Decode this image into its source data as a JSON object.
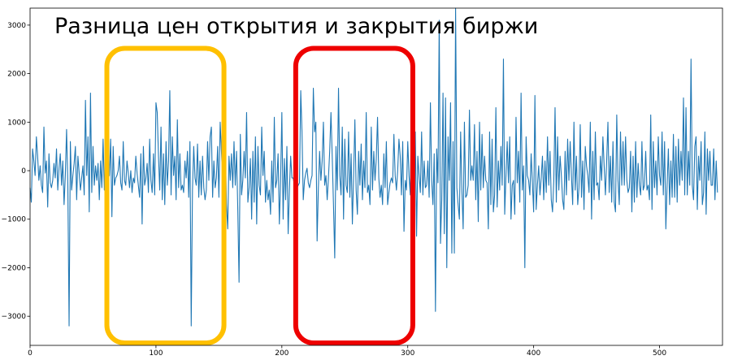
{
  "chart_data": {
    "type": "line",
    "title": "Разница цен открытия и закрытия биржи",
    "xlabel": "",
    "ylabel": "",
    "xlim": [
      0,
      550
    ],
    "ylim": [
      -3600,
      3350
    ],
    "x_ticks": [
      0,
      100,
      200,
      300,
      400,
      500
    ],
    "y_ticks": [
      -3000,
      -2000,
      -1000,
      0,
      1000,
      2000,
      3000
    ],
    "grid": false,
    "series": [
      {
        "color": "#1f77b4",
        "x_start": 0,
        "x_step": 1,
        "values": [
          -350,
          -650,
          450,
          200,
          -100,
          700,
          300,
          -200,
          100,
          -300,
          -450,
          900,
          -50,
          200,
          -750,
          350,
          -250,
          -350,
          -200,
          150,
          -150,
          450,
          -400,
          50,
          350,
          -300,
          200,
          -700,
          -100,
          850,
          -300,
          -3200,
          600,
          -400,
          -100,
          150,
          500,
          -600,
          300,
          -50,
          -400,
          -150,
          100,
          -500,
          1450,
          -100,
          700,
          -850,
          1600,
          -450,
          500,
          -300,
          100,
          -200,
          150,
          -600,
          200,
          -350,
          650,
          -400,
          -300,
          -350,
          -150,
          -100,
          650,
          -950,
          500,
          -300,
          -150,
          -100,
          0,
          300,
          -250,
          -400,
          600,
          -200,
          -300,
          200,
          -50,
          -350,
          0,
          -450,
          -150,
          -250,
          300,
          -50,
          -300,
          -550,
          350,
          -1100,
          500,
          -300,
          -150,
          150,
          -450,
          650,
          -200,
          -450,
          350,
          -500,
          1400,
          1200,
          300,
          -400,
          900,
          -600,
          350,
          -700,
          600,
          -300,
          200,
          1650,
          -500,
          700,
          -100,
          300,
          -600,
          1050,
          -350,
          350,
          -400,
          -300,
          -450,
          200,
          -150,
          400,
          -550,
          600,
          -3200,
          -400,
          500,
          -150,
          -300,
          550,
          -550,
          200,
          -500,
          300,
          -350,
          -600,
          -400,
          600,
          -200,
          700,
          900,
          -550,
          200,
          -350,
          -150,
          500,
          -550,
          1000,
          400,
          -200,
          -400,
          650,
          -700,
          -1200,
          300,
          -200,
          350,
          -350,
          600,
          -300,
          400,
          -800,
          -2300,
          750,
          -500,
          -200,
          400,
          -150,
          1200,
          -650,
          -350,
          250,
          -1000,
          400,
          -650,
          700,
          -1100,
          500,
          -300,
          -500,
          900,
          -100,
          400,
          -650,
          -200,
          -600,
          -400,
          -900,
          200,
          -650,
          1100,
          -350,
          -200,
          350,
          -1100,
          -200,
          1200,
          -1000,
          250,
          -600,
          500,
          -1300,
          -400,
          300,
          -150,
          -150,
          -300,
          1300,
          -350,
          -300,
          -250,
          1650,
          800,
          -600,
          -200,
          -50,
          50,
          -250,
          -350,
          -200,
          -100,
          1700,
          800,
          1000,
          -1450,
          -350,
          400,
          -200,
          200,
          1000,
          -300,
          -100,
          -600,
          -150,
          400,
          1200,
          300,
          -700,
          -1800,
          500,
          -400,
          1700,
          -100,
          -500,
          900,
          -1000,
          650,
          -300,
          -450,
          800,
          -550,
          350,
          -1100,
          -100,
          1050,
          -400,
          -900,
          400,
          -300,
          550,
          -600,
          200,
          -350,
          1200,
          -450,
          -300,
          -700,
          900,
          -400,
          400,
          -200,
          250,
          1100,
          -150,
          -550,
          -300,
          -700,
          350,
          -350,
          600,
          -700,
          -450,
          -250,
          -150,
          -250,
          750,
          -100,
          -400,
          0,
          650,
          300,
          -500,
          600,
          -1250,
          -200,
          -400,
          600,
          -100,
          -500,
          1400,
          200,
          -900,
          800,
          -1350,
          300,
          -100,
          -450,
          800,
          -500,
          200,
          -350,
          -300,
          200,
          -550,
          1400,
          -200,
          -700,
          350,
          -2900,
          450,
          -250,
          3100,
          -1500,
          -600,
          1600,
          -1300,
          1500,
          -2000,
          700,
          -200,
          1400,
          -1700,
          600,
          -1700,
          3350,
          -350,
          -700,
          -1000,
          800,
          -400,
          -1200,
          1000,
          -550,
          -500,
          -300,
          1250,
          -200,
          100,
          -200,
          950,
          -600,
          400,
          -1050,
          1000,
          -400,
          750,
          -350,
          300,
          -200,
          -250,
          -1200,
          800,
          -700,
          650,
          -850,
          -500,
          1300,
          -750,
          200,
          -400,
          500,
          -300,
          2300,
          -900,
          -100,
          600,
          -250,
          700,
          -1000,
          -300,
          -200,
          -900,
          1100,
          -250,
          400,
          -650,
          1600,
          -400,
          100,
          -2000,
          700,
          -100,
          -200,
          -500,
          350,
          -250,
          -850,
          1550,
          -800,
          -300,
          100,
          -500,
          -150,
          300,
          -600,
          200,
          -450,
          700,
          -300,
          400,
          -600,
          -850,
          -200,
          1300,
          -650,
          700,
          -400,
          300,
          -100,
          -600,
          -800,
          400,
          -500,
          650,
          -200,
          600,
          -100,
          -700,
          1000,
          -400,
          300,
          -700,
          -350,
          950,
          -550,
          200,
          -800,
          500,
          100,
          -100,
          -450,
          1000,
          -1000,
          400,
          -600,
          800,
          -300,
          -250,
          -600,
          300,
          -200,
          700,
          100,
          -500,
          200,
          1000,
          -450,
          300,
          -650,
          600,
          -650,
          -850,
          1150,
          -200,
          -700,
          800,
          -300,
          600,
          -300,
          700,
          -200,
          -450,
          -350,
          400,
          -850,
          300,
          -650,
          600,
          -550,
          150,
          -300,
          -500,
          600,
          -400,
          -300,
          400,
          -400,
          -300,
          -600,
          1150,
          -800,
          600,
          -350,
          200,
          -500,
          700,
          -100,
          -300,
          800,
          -500,
          600,
          -1200,
          -300,
          450,
          -700,
          200,
          -550,
          750,
          -550,
          500,
          -650,
          650,
          -300,
          400,
          -200,
          1500,
          -500,
          1300,
          -500,
          400,
          -300,
          2300,
          -300,
          -600,
          500,
          700,
          -800,
          300,
          -200,
          600,
          -700,
          -450,
          800,
          -900,
          450,
          -200,
          400,
          -300,
          -300,
          450,
          -600,
          200,
          -450
        ]
      }
    ],
    "annotations": [
      {
        "type": "rounded-rect",
        "color": "#ffc000",
        "x0": 61,
        "x1": 154,
        "y0": -3550,
        "y1": 2520
      },
      {
        "type": "rounded-rect",
        "color": "#ee0000",
        "x0": 211,
        "x1": 304,
        "y0": -3550,
        "y1": 2520
      }
    ]
  }
}
